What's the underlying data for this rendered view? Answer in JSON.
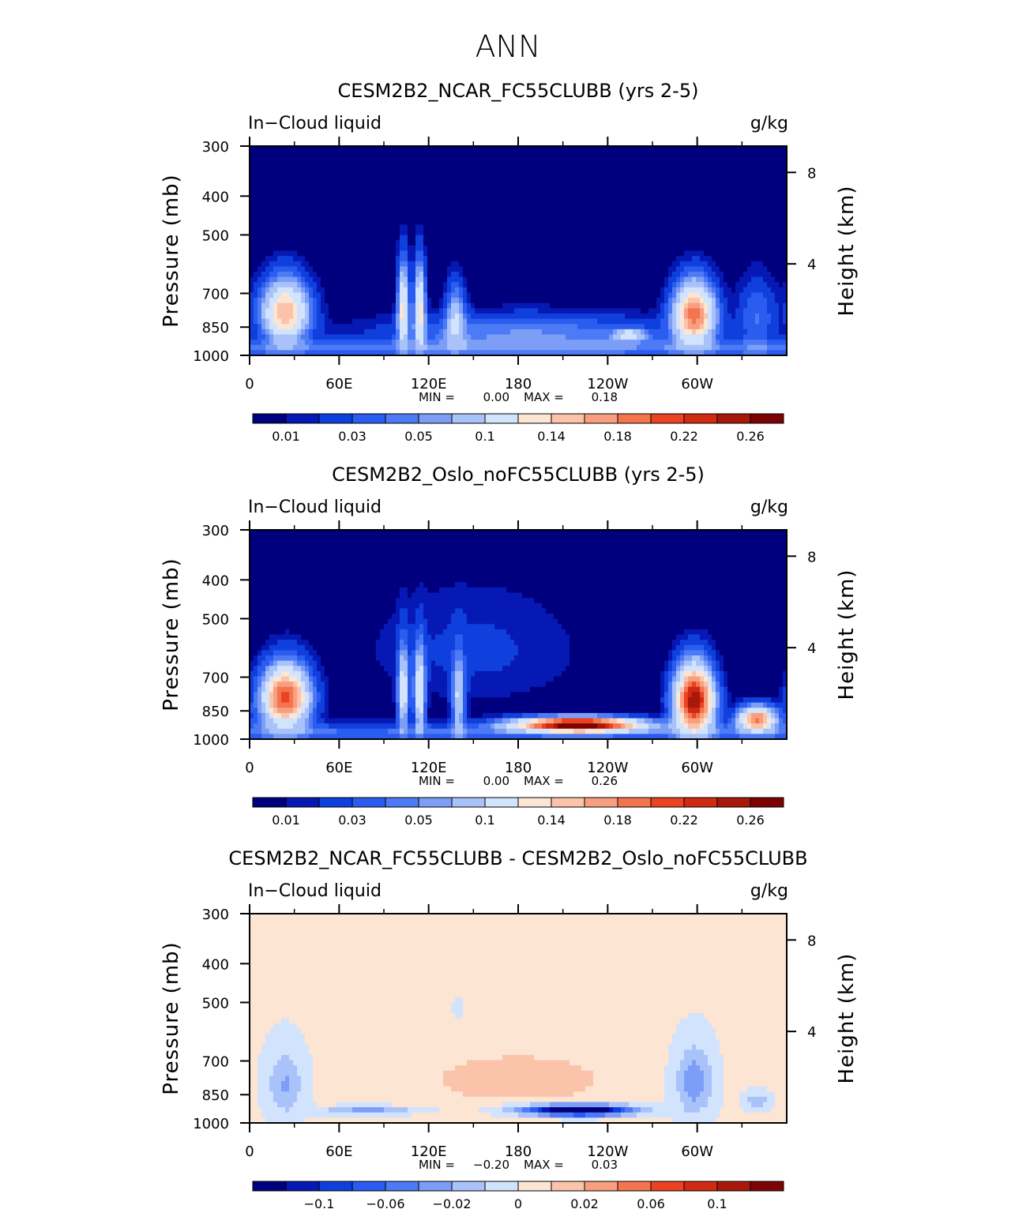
{
  "main_title": "ANN",
  "colors": {
    "seq": [
      "#00007f",
      "#0719b4",
      "#0f3fdc",
      "#2b5cf0",
      "#4d7af5",
      "#7c9ef7",
      "#a9c3fa",
      "#d2e3fd",
      "#fde5d3",
      "#fbc4aa",
      "#f79f7f",
      "#f3754f",
      "#eb4220",
      "#cf2a12",
      "#a8180b",
      "#7d0303"
    ],
    "diff": [
      "#00007f",
      "#0719b4",
      "#0f3fdc",
      "#2b5cf0",
      "#4d7af5",
      "#7c9ef7",
      "#a9c3fa",
      "#d2e3fd",
      "#fde5d3",
      "#fbc4aa",
      "#f79f7f",
      "#f3754f",
      "#eb4220",
      "#cf2a12",
      "#a8180b",
      "#7d0303"
    ]
  },
  "panels": [
    {
      "title": "CESM2B2_NCAR_FC55CLUBB (yrs 2-5)",
      "left_header": "In−Cloud liquid",
      "right_header": "g/kg",
      "ylabel": "Pressure (mb)",
      "ylabel_right": "Height (km)",
      "min_label": "MIN =",
      "min_value": "0.00",
      "max_label": "MAX =",
      "max_value": "0.18",
      "palette": "seq"
    },
    {
      "title": "CESM2B2_Oslo_noFC55CLUBB (yrs 2-5)",
      "left_header": "In−Cloud liquid",
      "right_header": "g/kg",
      "ylabel": "Pressure (mb)",
      "ylabel_right": "Height (km)",
      "min_label": "MIN =",
      "min_value": "0.00",
      "max_label": "MAX =",
      "max_value": "0.26",
      "palette": "seq"
    },
    {
      "title": "CESM2B2_NCAR_FC55CLUBB - CESM2B2_Oslo_noFC55CLUBB",
      "left_header": "In−Cloud liquid",
      "right_header": "g/kg",
      "ylabel": "Pressure (mb)",
      "ylabel_right": "Height (km)",
      "min_label": "MIN =",
      "min_value": "−0.20",
      "max_label": "MAX =",
      "max_value": "0.03",
      "palette": "diff"
    }
  ],
  "chart_data": [
    {
      "type": "heatmap",
      "title": "CESM2B2_NCAR_FC55CLUBB (yrs 2-5)",
      "variable": "In-Cloud liquid",
      "units": "g/kg",
      "x_ticks": [
        "0",
        "60E",
        "120E",
        "180",
        "120W",
        "60W"
      ],
      "x_tick_values": [
        0,
        60,
        120,
        180,
        240,
        300
      ],
      "x_range": [
        0,
        360
      ],
      "y_ticks": [
        "300",
        "400",
        "500",
        "700",
        "850",
        "1000"
      ],
      "y_tick_values": [
        300,
        400,
        500,
        700,
        850,
        1000
      ],
      "y_range": [
        1000,
        300
      ],
      "height_ticks": [
        "4",
        "8"
      ],
      "height_tick_values": [
        4,
        8
      ],
      "colorbar_labels": [
        "0.01",
        "0.03",
        "0.05",
        "0.1",
        "0.14",
        "0.18",
        "0.22",
        "0.26"
      ],
      "levels": [
        0.005,
        0.01,
        0.02,
        0.03,
        0.04,
        0.05,
        0.07,
        0.1,
        0.12,
        0.14,
        0.16,
        0.18,
        0.2,
        0.22,
        0.24,
        0.26
      ],
      "min": 0.0,
      "max": 0.18,
      "features": [
        {
          "lon": 24,
          "p": 780,
          "wlon": 15,
          "wp": 130,
          "amp": 0.14
        },
        {
          "lon": 103,
          "p": 760,
          "wlon": 3.5,
          "wp": 170,
          "amp": 0.11
        },
        {
          "lon": 114,
          "p": 760,
          "wlon": 3.5,
          "wp": 170,
          "amp": 0.11
        },
        {
          "lon": 138,
          "p": 800,
          "wlon": 6,
          "wp": 140,
          "amp": 0.06
        },
        {
          "lon": 185,
          "p": 880,
          "wlon": 90,
          "wp": 90,
          "amp": 0.04
        },
        {
          "lon": 255,
          "p": 890,
          "wlon": 10,
          "wp": 30,
          "amp": 0.07
        },
        {
          "lon": 298,
          "p": 790,
          "wlon": 13,
          "wp": 130,
          "amp": 0.17
        },
        {
          "lon": 340,
          "p": 800,
          "wlon": 12,
          "wp": 160,
          "amp": 0.03
        }
      ]
    },
    {
      "type": "heatmap",
      "title": "CESM2B2_Oslo_noFC55CLUBB (yrs 2-5)",
      "variable": "In-Cloud liquid",
      "units": "g/kg",
      "x_ticks": [
        "0",
        "60E",
        "120E",
        "180",
        "120W",
        "60W"
      ],
      "x_tick_values": [
        0,
        60,
        120,
        180,
        240,
        300
      ],
      "x_range": [
        0,
        360
      ],
      "y_ticks": [
        "300",
        "400",
        "500",
        "700",
        "850",
        "1000"
      ],
      "y_tick_values": [
        300,
        400,
        500,
        700,
        850,
        1000
      ],
      "y_range": [
        1000,
        300
      ],
      "height_ticks": [
        "4",
        "8"
      ],
      "height_tick_values": [
        4,
        8
      ],
      "colorbar_labels": [
        "0.01",
        "0.03",
        "0.05",
        "0.1",
        "0.14",
        "0.18",
        "0.22",
        "0.26"
      ],
      "levels": [
        0.005,
        0.01,
        0.02,
        0.03,
        0.04,
        0.05,
        0.07,
        0.1,
        0.12,
        0.14,
        0.16,
        0.18,
        0.2,
        0.22,
        0.24,
        0.26
      ],
      "min": 0.0,
      "max": 0.26,
      "features": [
        {
          "lon": 24,
          "p": 790,
          "wlon": 15,
          "wp": 130,
          "amp": 0.19
        },
        {
          "lon": 103,
          "p": 760,
          "wlon": 3.5,
          "wp": 170,
          "amp": 0.09
        },
        {
          "lon": 114,
          "p": 760,
          "wlon": 3.5,
          "wp": 170,
          "amp": 0.1
        },
        {
          "lon": 140,
          "p": 790,
          "wlon": 4,
          "wp": 170,
          "amp": 0.07
        },
        {
          "lon": 150,
          "p": 600,
          "wlon": 70,
          "wp": 200,
          "amp": 0.012
        },
        {
          "lon": 220,
          "p": 920,
          "wlon": 38,
          "wp": 35,
          "amp": 0.26
        },
        {
          "lon": 298,
          "p": 800,
          "wlon": 12,
          "wp": 140,
          "amp": 0.24
        },
        {
          "lon": 340,
          "p": 890,
          "wlon": 12,
          "wp": 60,
          "amp": 0.16
        }
      ]
    },
    {
      "type": "heatmap",
      "title": "CESM2B2_NCAR_FC55CLUBB - CESM2B2_Oslo_noFC55CLUBB",
      "variable": "In-Cloud liquid",
      "units": "g/kg",
      "x_ticks": [
        "0",
        "60E",
        "120E",
        "180",
        "120W",
        "60W"
      ],
      "x_tick_values": [
        0,
        60,
        120,
        180,
        240,
        300
      ],
      "x_range": [
        0,
        360
      ],
      "y_ticks": [
        "300",
        "400",
        "500",
        "700",
        "850",
        "1000"
      ],
      "y_tick_values": [
        300,
        400,
        500,
        700,
        850,
        1000
      ],
      "y_range": [
        1000,
        300
      ],
      "height_ticks": [
        "4",
        "8"
      ],
      "height_tick_values": [
        4,
        8
      ],
      "colorbar_labels": [
        "−0.1",
        "−0.06",
        "−0.02",
        "0",
        "0.02",
        "0.06",
        "0.1"
      ],
      "levels": [
        -0.14,
        -0.12,
        -0.1,
        -0.08,
        -0.06,
        -0.04,
        -0.02,
        0,
        0.01,
        0.02,
        0.04,
        0.06,
        0.08,
        0.1,
        0.12,
        0.14
      ],
      "min": -0.2,
      "max": 0.03,
      "features": [
        {
          "lon": 24,
          "p": 800,
          "wlon": 12,
          "wp": 150,
          "amp": -0.045
        },
        {
          "lon": 220,
          "p": 930,
          "wlon": 35,
          "wp": 28,
          "amp": -0.2
        },
        {
          "lon": 298,
          "p": 790,
          "wlon": 12,
          "wp": 150,
          "amp": -0.06
        },
        {
          "lon": 80,
          "p": 930,
          "wlon": 30,
          "wp": 20,
          "amp": -0.05
        },
        {
          "lon": 180,
          "p": 780,
          "wlon": 70,
          "wp": 130,
          "amp": 0.012
        },
        {
          "lon": 140,
          "p": 520,
          "wlon": 5,
          "wp": 40,
          "amp": -0.006
        },
        {
          "lon": 340,
          "p": 880,
          "wlon": 8,
          "wp": 40,
          "amp": -0.04
        }
      ]
    }
  ]
}
